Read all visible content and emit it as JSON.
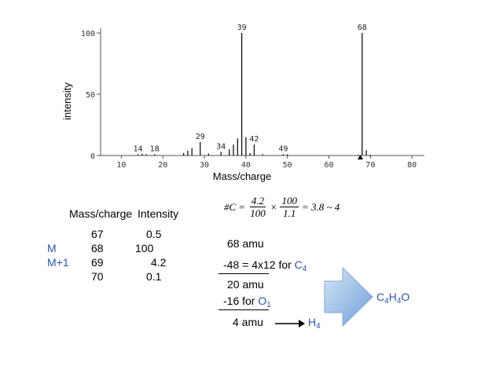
{
  "chart_data": {
    "type": "bar",
    "xlabel": "Mass/charge",
    "ylabel": "intensity",
    "xlim": [
      5,
      83
    ],
    "ylim": [
      0,
      100
    ],
    "x_ticks": [
      10,
      20,
      30,
      40,
      50,
      60,
      70,
      80
    ],
    "y_ticks": [
      0,
      50,
      100
    ],
    "peaks": [
      {
        "x": 14,
        "y": 1
      },
      {
        "x": 15,
        "y": 1.5
      },
      {
        "x": 16,
        "y": 1
      },
      {
        "x": 18,
        "y": 1
      },
      {
        "x": 25,
        "y": 2
      },
      {
        "x": 26,
        "y": 4
      },
      {
        "x": 27,
        "y": 6
      },
      {
        "x": 29,
        "y": 11
      },
      {
        "x": 31,
        "y": 1.5
      },
      {
        "x": 34,
        "y": 3
      },
      {
        "x": 36,
        "y": 5
      },
      {
        "x": 37,
        "y": 9
      },
      {
        "x": 38,
        "y": 14
      },
      {
        "x": 39,
        "y": 100
      },
      {
        "x": 40,
        "y": 15
      },
      {
        "x": 41,
        "y": 2
      },
      {
        "x": 42,
        "y": 9
      },
      {
        "x": 44,
        "y": 1
      },
      {
        "x": 49,
        "y": 1
      },
      {
        "x": 50,
        "y": 1
      },
      {
        "x": 67,
        "y": 0.5
      },
      {
        "x": 68,
        "y": 100
      },
      {
        "x": 69,
        "y": 4.2
      },
      {
        "x": 70,
        "y": 0.1
      }
    ],
    "annotations": [
      {
        "x": 14,
        "y": 1,
        "text": "14"
      },
      {
        "x": 18,
        "y": 1,
        "text": "18"
      },
      {
        "x": 29,
        "y": 11,
        "text": "29"
      },
      {
        "x": 34,
        "y": 3,
        "text": "34"
      },
      {
        "x": 39,
        "y": 100,
        "text": "39"
      },
      {
        "x": 42,
        "y": 9,
        "text": "42"
      },
      {
        "x": 49,
        "y": 1,
        "text": "49"
      },
      {
        "x": 68,
        "y": 100,
        "text": "68"
      }
    ]
  },
  "table": {
    "header_mass": "Mass/charge",
    "header_intensity": "Intensity",
    "rows": [
      {
        "label": "",
        "mass": "67",
        "intensity": "0.5"
      },
      {
        "label": "M",
        "mass": "68",
        "intensity": "100"
      },
      {
        "label": "M+1",
        "mass": "69",
        "intensity": "4.2"
      },
      {
        "label": "",
        "mass": "70",
        "intensity": "0.1"
      }
    ]
  },
  "formula": {
    "lhs": "#C =",
    "frac1_num": "4.2",
    "frac1_den": "100",
    "times": "×",
    "frac2_num": "100",
    "frac2_den": "1.1",
    "result": "= 3.8 ~ 4"
  },
  "calc": {
    "line1": "68 amu",
    "line2_prefix": "-48 = 4x12 for ",
    "line2_elem": "C",
    "line2_sub": "4",
    "line3": "20 amu",
    "line4_prefix": "-16  for ",
    "line4_elem": "O",
    "line4_sub": "1",
    "line5": "4  amu",
    "line5_elem": "H",
    "line5_sub": "4"
  },
  "result_formula": {
    "c": "C",
    "c_sub": "4",
    "h": "H",
    "h_sub": "4",
    "o": "O"
  },
  "colors": {
    "blue_text": "#2e55a8",
    "arrow_light": "#d5e6f7",
    "arrow_dark": "#6d9fd8"
  }
}
